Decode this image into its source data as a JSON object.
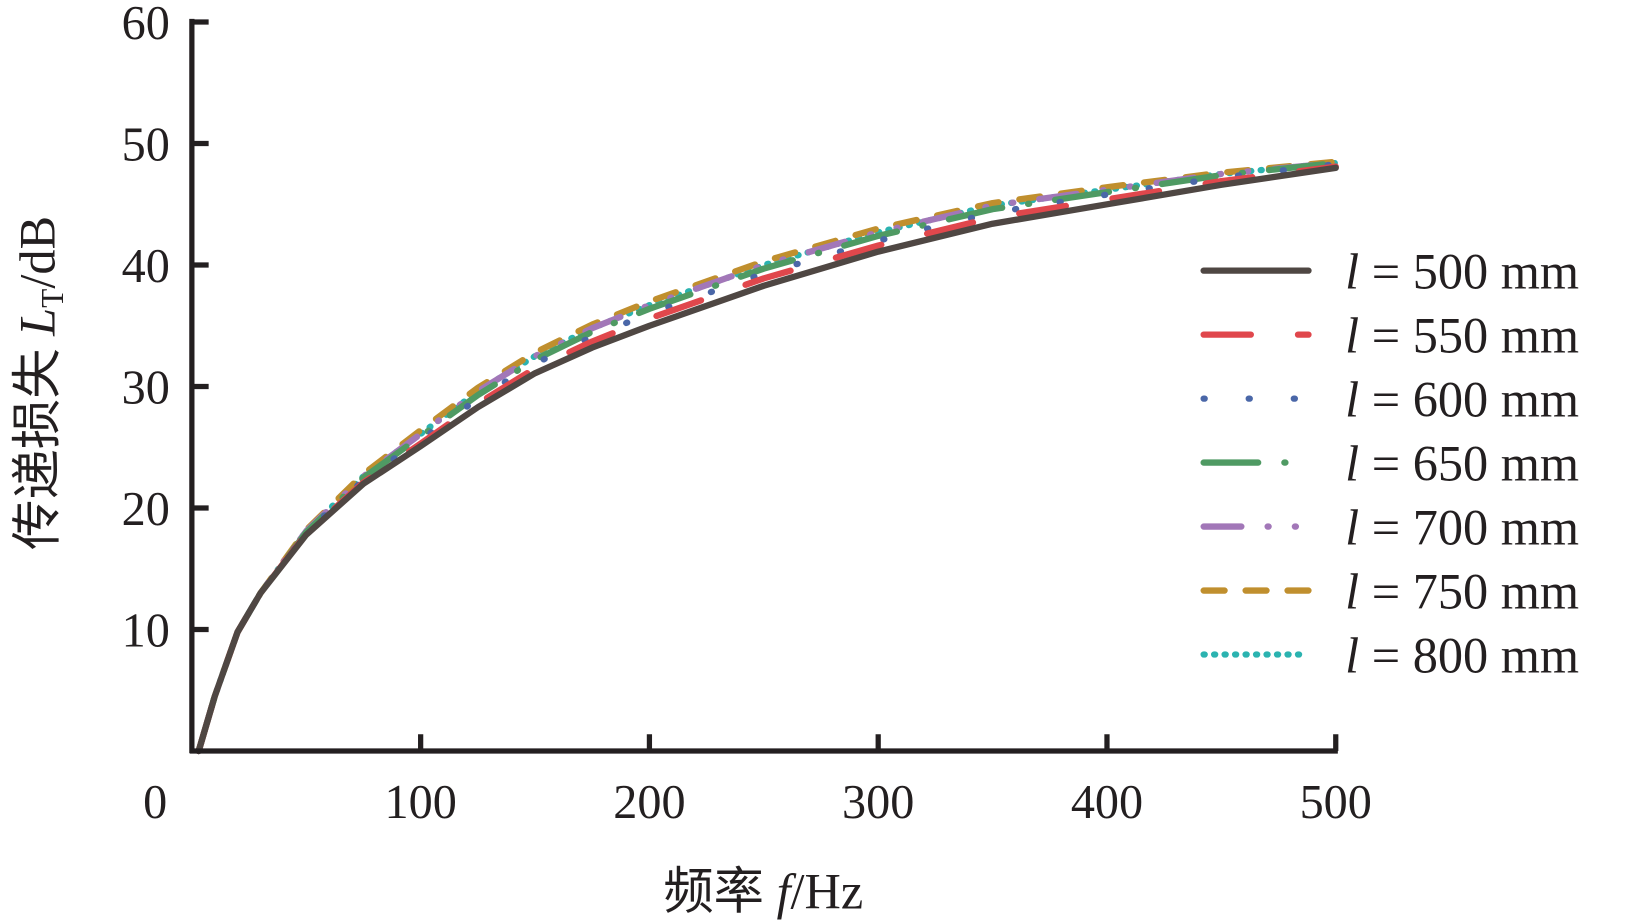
{
  "chart_data": {
    "type": "line",
    "title": "",
    "xlabel": "频率 f/Hz",
    "xlabel_parts": {
      "prefix": "频率 ",
      "var": "f",
      "suffix": "/Hz"
    },
    "ylabel": "传递损失 L_T/dB",
    "ylabel_parts": {
      "prefix": "传递损失 ",
      "var": "L",
      "sub": "T",
      "suffix": "/dB"
    },
    "xlim": [
      0,
      500
    ],
    "ylim": [
      0,
      60
    ],
    "xticks": [
      "0",
      "100",
      "200",
      "300",
      "400",
      "500"
    ],
    "yticks": [
      "10",
      "20",
      "30",
      "40",
      "50",
      "60"
    ],
    "grid": false,
    "legend_position": "right",
    "x": [
      3,
      10,
      20,
      30,
      50,
      75,
      100,
      125,
      150,
      175,
      200,
      250,
      300,
      350,
      400,
      450,
      500
    ],
    "series": [
      {
        "name": "l = 500 mm",
        "var": "l",
        "label": " = 500 mm",
        "color": "#4f4743",
        "style": "solid",
        "values": [
          0,
          4.5,
          9.8,
          13.0,
          17.8,
          22.0,
          25.1,
          28.3,
          31.1,
          33.2,
          35.0,
          38.3,
          41.1,
          43.4,
          45.0,
          46.6,
          48.0
        ]
      },
      {
        "name": "l = 550 mm",
        "var": "l",
        "label": " = 550 mm",
        "color": "#e0474c",
        "style": "dash",
        "values": [
          0,
          4.5,
          9.8,
          13.0,
          17.9,
          22.1,
          25.3,
          28.6,
          31.5,
          33.7,
          35.6,
          38.9,
          41.6,
          43.9,
          45.4,
          46.9,
          48.1
        ]
      },
      {
        "name": "l = 600 mm",
        "var": "l",
        "label": " = 600 mm",
        "color": "#4a67a8",
        "style": "dot",
        "values": [
          0,
          4.5,
          9.8,
          13.0,
          18.0,
          22.3,
          25.6,
          29.0,
          31.9,
          34.1,
          36.0,
          39.3,
          42.0,
          44.3,
          45.8,
          47.2,
          48.3
        ]
      },
      {
        "name": "l = 650 mm",
        "var": "l",
        "label": " = 650 mm",
        "color": "#4f9a63",
        "style": "dashdot",
        "values": [
          0,
          4.5,
          9.8,
          13.0,
          18.0,
          22.5,
          25.9,
          29.3,
          32.2,
          34.5,
          36.4,
          39.7,
          42.4,
          44.6,
          46.0,
          47.4,
          48.4
        ]
      },
      {
        "name": "l = 700 mm",
        "var": "l",
        "label": " = 700 mm",
        "color": "#a277b8",
        "style": "dashdotdot",
        "values": [
          0,
          4.5,
          9.8,
          13.0,
          18.1,
          22.6,
          26.1,
          29.6,
          32.5,
          34.8,
          36.7,
          40.0,
          42.7,
          44.9,
          46.2,
          47.5,
          48.4
        ]
      },
      {
        "name": "l = 750 mm",
        "var": "l",
        "label": " = 750 mm",
        "color": "#c08f2e",
        "style": "shortdash",
        "values": [
          0,
          4.5,
          9.8,
          13.0,
          18.2,
          22.8,
          26.4,
          29.9,
          32.8,
          35.1,
          37.0,
          40.3,
          43.0,
          45.1,
          46.4,
          47.6,
          48.5
        ]
      },
      {
        "name": "l = 800 mm",
        "var": "l",
        "label": " = 800 mm",
        "color": "#2bb3b0",
        "style": "dotted",
        "values": [
          0,
          4.5,
          9.8,
          13.0,
          18.1,
          22.6,
          26.1,
          29.6,
          32.5,
          34.8,
          36.7,
          40.0,
          42.7,
          44.9,
          46.2,
          47.5,
          48.4
        ]
      }
    ]
  }
}
